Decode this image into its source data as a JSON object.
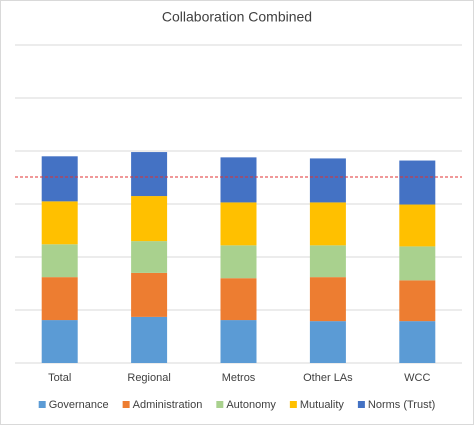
{
  "chart_data": {
    "type": "stacked_bar",
    "title": "Collaboration Combined",
    "categories": [
      "Total",
      "Regional",
      "Metros",
      "Other LAs",
      "WCC"
    ],
    "series": [
      {
        "name": "Governance",
        "color": "#5b9bd5",
        "values": [
          0.81,
          0.87,
          0.81,
          0.79,
          0.79
        ]
      },
      {
        "name": "Administration",
        "color": "#ed7d31",
        "values": [
          0.81,
          0.83,
          0.79,
          0.83,
          0.77
        ]
      },
      {
        "name": "Autonomy",
        "color": "#a9d18e",
        "values": [
          0.62,
          0.6,
          0.62,
          0.6,
          0.64
        ]
      },
      {
        "name": "Mutuality",
        "color": "#ffc000",
        "values": [
          0.81,
          0.85,
          0.81,
          0.81,
          0.79
        ]
      },
      {
        "name": "Norms (Trust)",
        "color": "#4472c4",
        "values": [
          0.85,
          0.83,
          0.85,
          0.83,
          0.83
        ]
      }
    ],
    "ylim": [
      0,
      6
    ],
    "yticks": [
      0,
      1,
      2,
      3,
      4,
      5,
      6
    ],
    "grid": true,
    "reference_line": {
      "value": 3.51,
      "color": "#e03030"
    },
    "legend": "bottom"
  }
}
